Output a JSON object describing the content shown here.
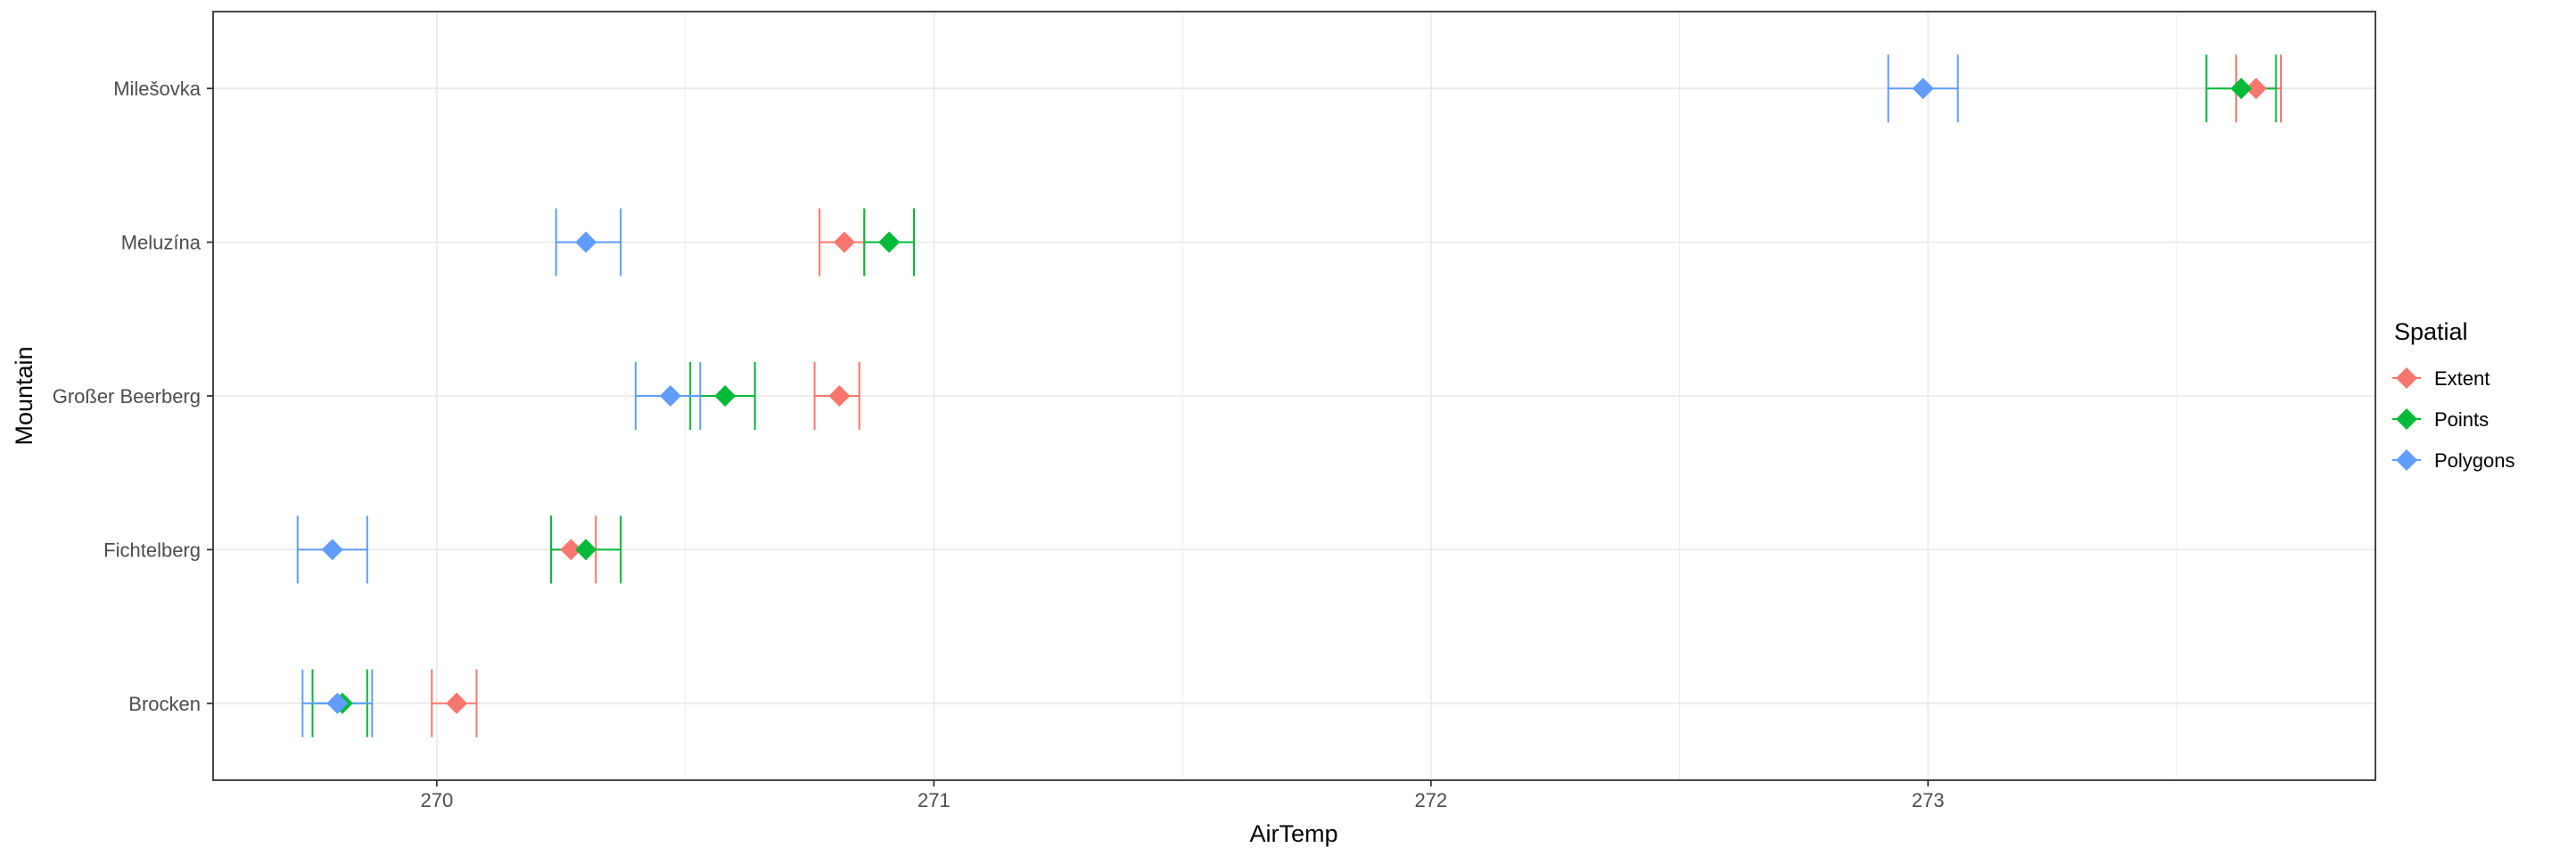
{
  "chart_data": {
    "type": "scatter",
    "xlabel": "AirTemp",
    "ylabel": "Mountain",
    "xlim": [
      269.55,
      273.9
    ],
    "x_ticks": [
      270,
      271,
      272,
      273
    ],
    "categories": [
      "Brocken",
      "Fichtelberg",
      "Großer Beerberg",
      "Meluzína",
      "Milešovka"
    ],
    "grid": true,
    "legend": {
      "title": "Spatial",
      "position": "right"
    },
    "series": [
      {
        "name": "Extent",
        "color": "#F8766D",
        "points": [
          {
            "y": "Brocken",
            "x": 270.04,
            "xmin": 269.99,
            "xmax": 270.08
          },
          {
            "y": "Fichtelberg",
            "x": 270.27,
            "xmin": 270.23,
            "xmax": 270.32
          },
          {
            "y": "Großer Beerberg",
            "x": 270.81,
            "xmin": 270.76,
            "xmax": 270.85
          },
          {
            "y": "Meluzína",
            "x": 270.82,
            "xmin": 270.77,
            "xmax": 270.86
          },
          {
            "y": "Milešovka",
            "x": 273.66,
            "xmin": 273.62,
            "xmax": 273.71
          }
        ]
      },
      {
        "name": "Points",
        "color": "#00BA38",
        "points": [
          {
            "y": "Brocken",
            "x": 269.81,
            "xmin": 269.75,
            "xmax": 269.86
          },
          {
            "y": "Fichtelberg",
            "x": 270.3,
            "xmin": 270.23,
            "xmax": 270.37
          },
          {
            "y": "Großer Beerberg",
            "x": 270.58,
            "xmin": 270.51,
            "xmax": 270.64
          },
          {
            "y": "Meluzína",
            "x": 270.91,
            "xmin": 270.86,
            "xmax": 270.96
          },
          {
            "y": "Milešovka",
            "x": 273.63,
            "xmin": 273.56,
            "xmax": 273.7
          }
        ]
      },
      {
        "name": "Polygons",
        "color": "#619CFF",
        "points": [
          {
            "y": "Brocken",
            "x": 269.8,
            "xmin": 269.73,
            "xmax": 269.87
          },
          {
            "y": "Fichtelberg",
            "x": 269.79,
            "xmin": 269.72,
            "xmax": 269.86
          },
          {
            "y": "Großer Beerberg",
            "x": 270.47,
            "xmin": 270.4,
            "xmax": 270.53
          },
          {
            "y": "Meluzína",
            "x": 270.3,
            "xmin": 270.24,
            "xmax": 270.37
          },
          {
            "y": "Milešovka",
            "x": 272.99,
            "xmin": 272.92,
            "xmax": 273.06
          }
        ]
      }
    ]
  }
}
